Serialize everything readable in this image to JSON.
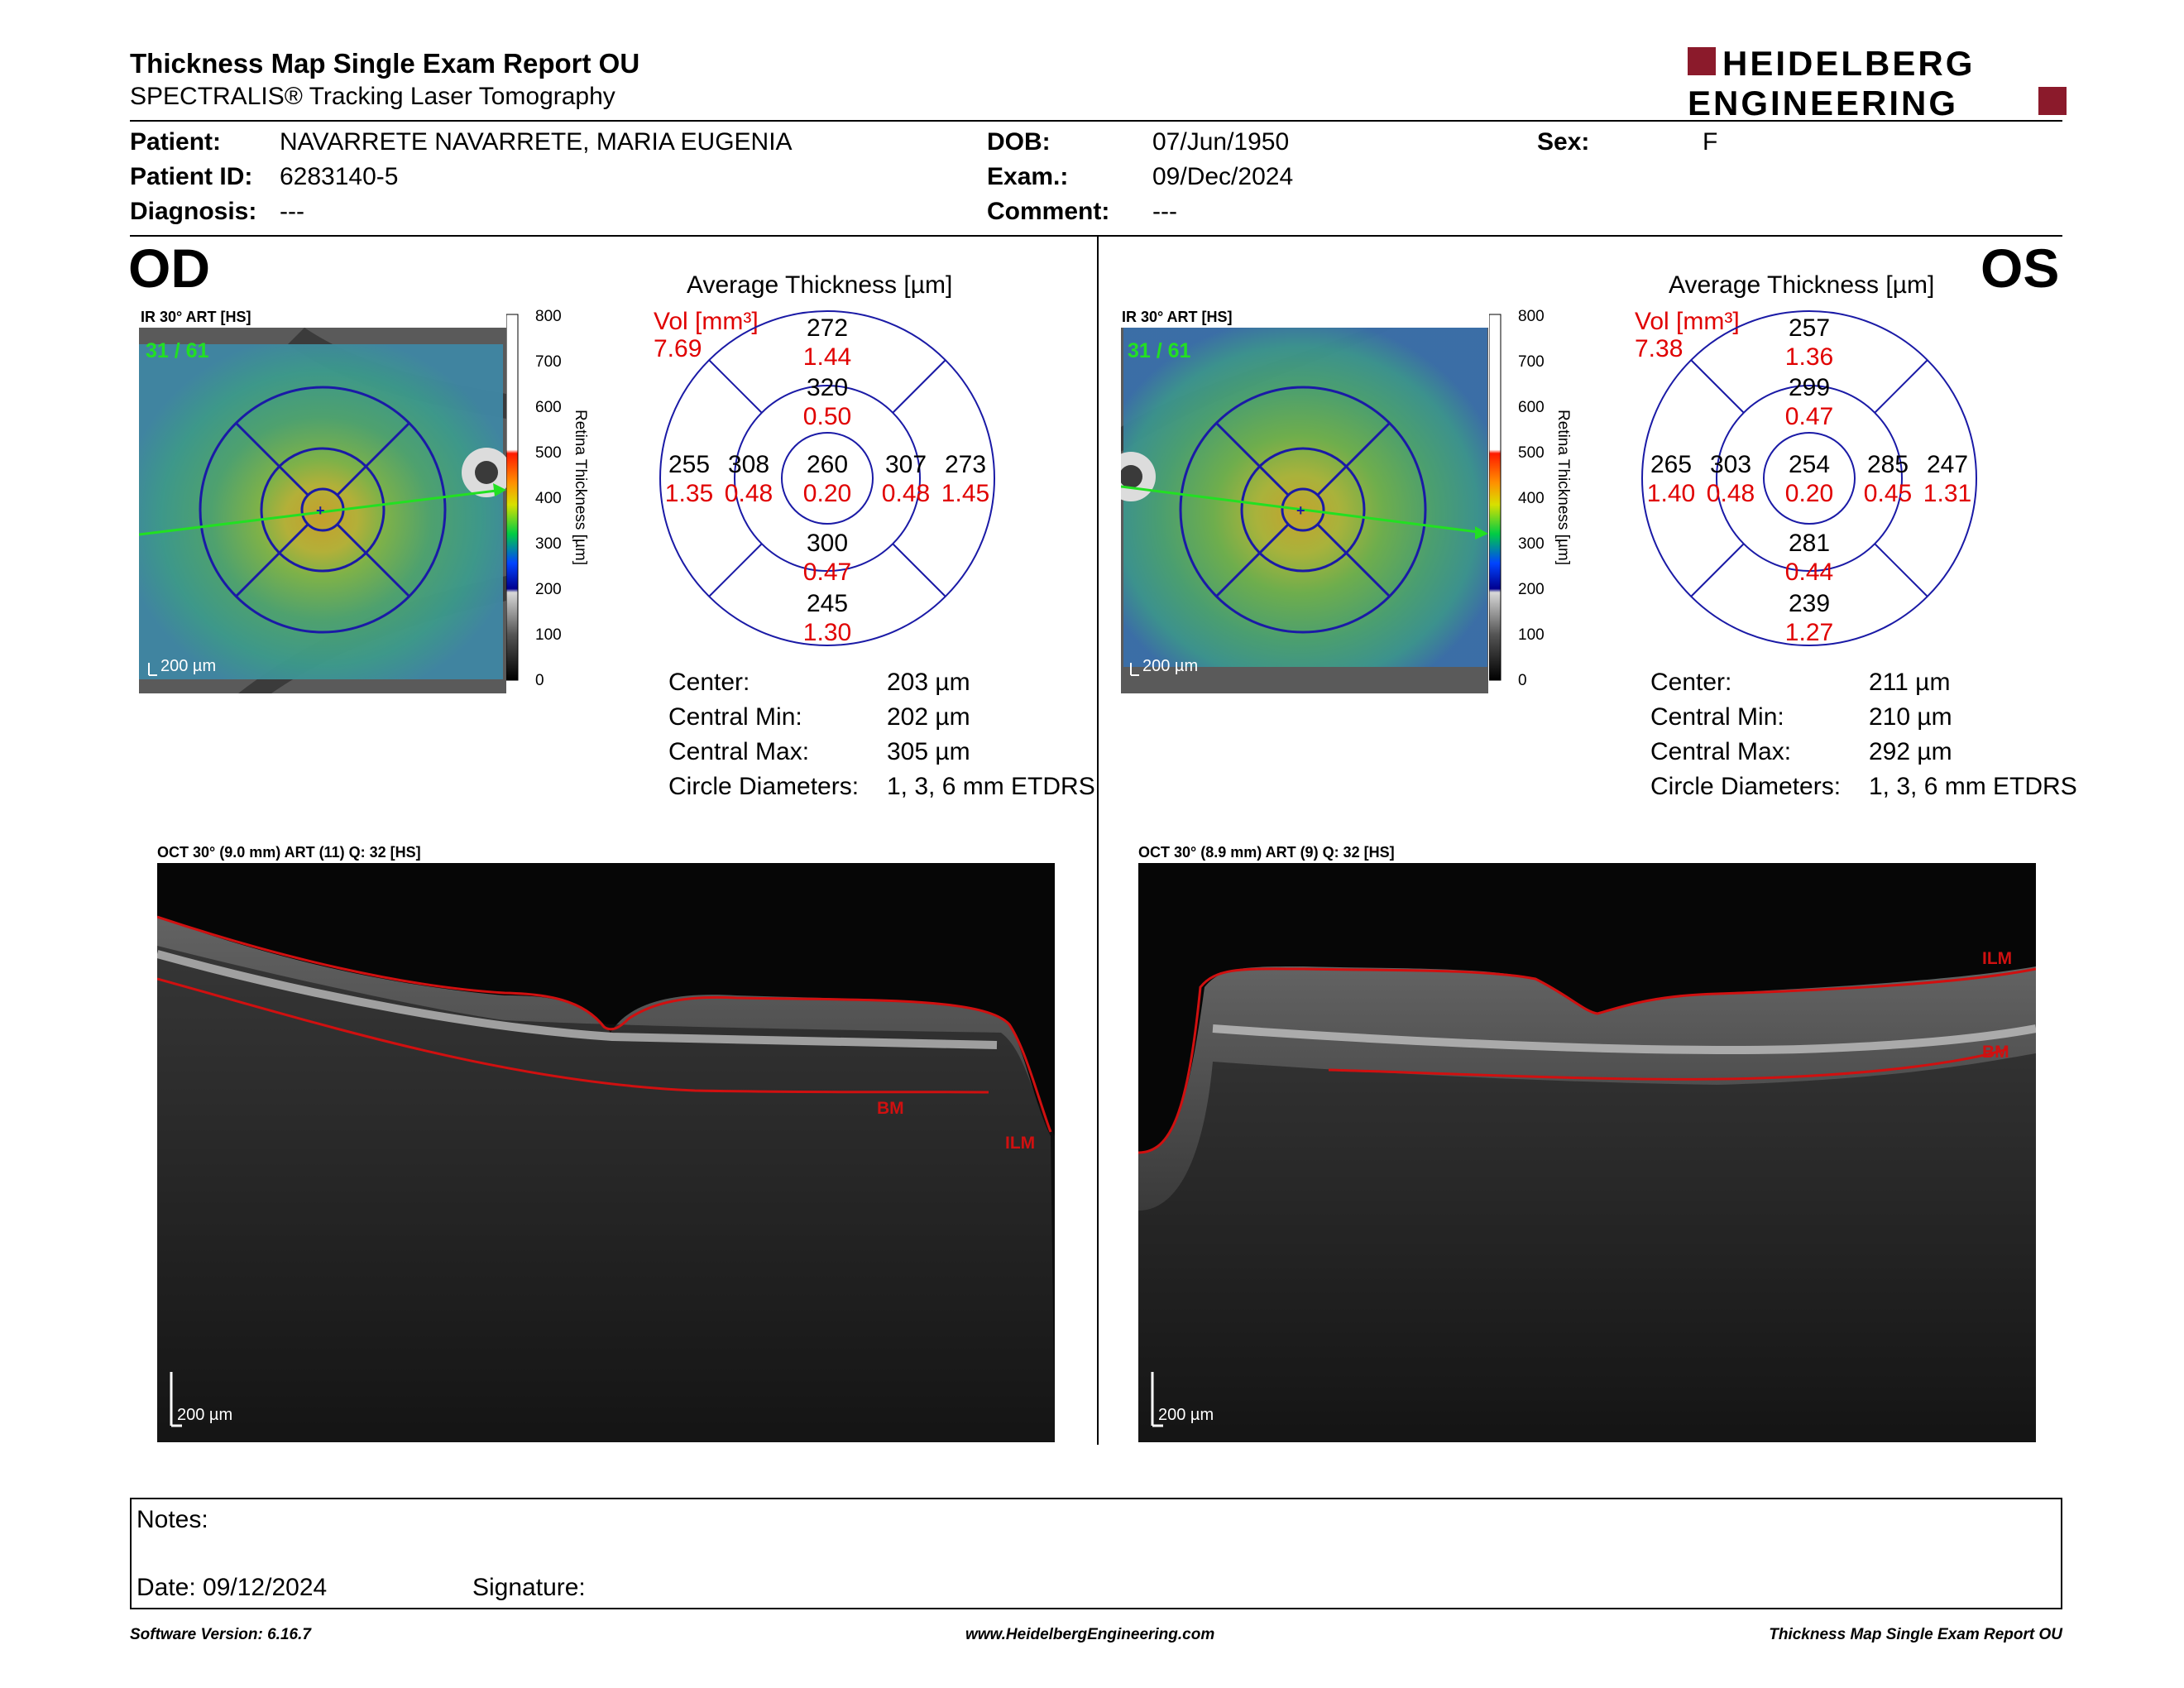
{
  "header": {
    "title": "Thickness Map Single Exam Report OU",
    "subtitle": "SPECTRALIS® Tracking Laser Tomography",
    "logo_line1": "HEIDELBERG",
    "logo_line2": "ENGINEERING"
  },
  "patient": {
    "patient_label": "Patient:",
    "patient_value": "NAVARRETE NAVARRETE, MARIA EUGENIA",
    "id_label": "Patient ID:",
    "id_value": "6283140-5",
    "diagnosis_label": "Diagnosis:",
    "diagnosis_value": "---",
    "dob_label": "DOB:",
    "dob_value": "07/Jun/1950",
    "exam_label": "Exam.:",
    "exam_value": "09/Dec/2024",
    "comment_label": "Comment:",
    "comment_value": "---",
    "sex_label": "Sex:",
    "sex_value": "F"
  },
  "od": {
    "eye": "OD",
    "ir_label": "IR 30° ART [HS]",
    "frame_counter": "31 / 61",
    "scale_bar": "200 µm",
    "avg_title": "Average Thickness [µm]",
    "vol_label": "Vol [mm³]",
    "vol_total": "7.69",
    "grid": {
      "center_t": "260",
      "center_v": "0.20",
      "inner_sup_t": "320",
      "inner_sup_v": "0.50",
      "inner_inf_t": "300",
      "inner_inf_v": "0.47",
      "inner_left_t": "308",
      "inner_left_v": "0.48",
      "inner_right_t": "307",
      "inner_right_v": "0.48",
      "outer_sup_t": "272",
      "outer_sup_v": "1.44",
      "outer_inf_t": "245",
      "outer_inf_v": "1.30",
      "outer_left_t": "255",
      "outer_left_v": "1.35",
      "outer_right_t": "273",
      "outer_right_v": "1.45"
    },
    "stats": {
      "center_label": "Center:",
      "center_value": "203 µm",
      "min_label": "Central Min:",
      "min_value": "202 µm",
      "max_label": "Central Max:",
      "max_value": "305 µm",
      "diam_label": "Circle Diameters:",
      "diam_value": "1, 3, 6 mm ETDRS"
    },
    "oct_label": "OCT 30° (9.0 mm) ART (11) Q: 32 [HS]",
    "oct_scale": "200 µm",
    "ilm": "ILM",
    "bm": "BM"
  },
  "os": {
    "eye": "OS",
    "ir_label": "IR 30° ART [HS]",
    "frame_counter": "31 / 61",
    "scale_bar": "200 µm",
    "avg_title": "Average Thickness [µm]",
    "vol_label": "Vol [mm³]",
    "vol_total": "7.38",
    "grid": {
      "center_t": "254",
      "center_v": "0.20",
      "inner_sup_t": "299",
      "inner_sup_v": "0.47",
      "inner_inf_t": "281",
      "inner_inf_v": "0.44",
      "inner_left_t": "303",
      "inner_left_v": "0.48",
      "inner_right_t": "285",
      "inner_right_v": "0.45",
      "outer_sup_t": "257",
      "outer_sup_v": "1.36",
      "outer_inf_t": "239",
      "outer_inf_v": "1.27",
      "outer_left_t": "265",
      "outer_left_v": "1.40",
      "outer_right_t": "247",
      "outer_right_v": "1.31"
    },
    "stats": {
      "center_label": "Center:",
      "center_value": "211 µm",
      "min_label": "Central Min:",
      "min_value": "210 µm",
      "max_label": "Central Max:",
      "max_value": "292 µm",
      "diam_label": "Circle Diameters:",
      "diam_value": "1, 3, 6 mm ETDRS"
    },
    "oct_label": "OCT 30° (8.9 mm) ART (9) Q: 32 [HS]",
    "oct_scale": "200 µm",
    "ilm": "ILM",
    "bm": "BM"
  },
  "colorbar": {
    "ticks": [
      "800",
      "700",
      "600",
      "500",
      "400",
      "300",
      "200",
      "100",
      "0"
    ],
    "title": "Retina Thickness [µm]"
  },
  "notes": {
    "notes_label": "Notes:",
    "date_label": "Date: 09/12/2024",
    "signature_label": "Signature:"
  },
  "footer": {
    "software": "Software Version: 6.16.7",
    "website": "www.HeidelbergEngineering.com",
    "report": "Thickness Map Single Exam Report OU"
  },
  "colors": {
    "brand_red": "#8b1a2b",
    "grid_blue": "#1a1aa6",
    "volume_red": "#e00000",
    "segment_red": "#d01010"
  }
}
